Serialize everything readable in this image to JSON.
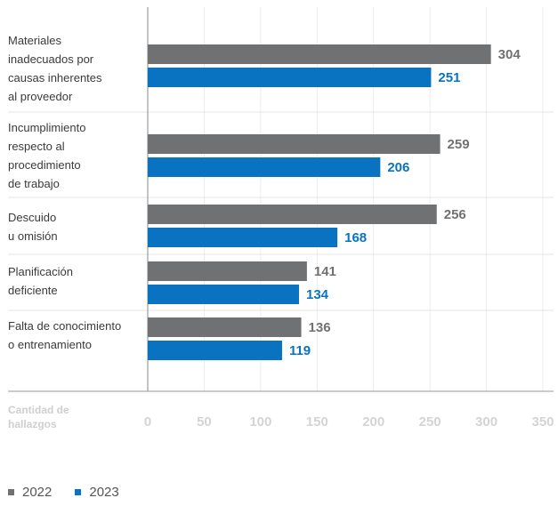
{
  "chart_data": {
    "type": "bar",
    "orientation": "horizontal",
    "categories": [
      [
        "Materiales",
        "inadecuados por",
        "causas inherentes",
        "al proveedor"
      ],
      [
        "Incumplimiento",
        "respecto al",
        "procedimiento",
        "de trabajo"
      ],
      [
        "Descuido",
        "u omisión"
      ],
      [
        "Planificación",
        "deficiente"
      ],
      [
        "Falta de conocimiento",
        "o entrenamiento"
      ]
    ],
    "series": [
      {
        "name": "2022",
        "values": [
          304,
          259,
          256,
          141,
          136
        ],
        "color": "#707173"
      },
      {
        "name": "2023",
        "values": [
          251,
          206,
          168,
          134,
          119
        ],
        "color": "#0a73c1"
      }
    ],
    "xlabel": [
      "Cantidad de",
      "hallazgos"
    ],
    "xlim": [
      0,
      350
    ],
    "xticks": [
      0,
      50,
      100,
      150,
      200,
      250,
      300,
      350
    ],
    "grid": true,
    "legend_position": "bottom-left"
  }
}
